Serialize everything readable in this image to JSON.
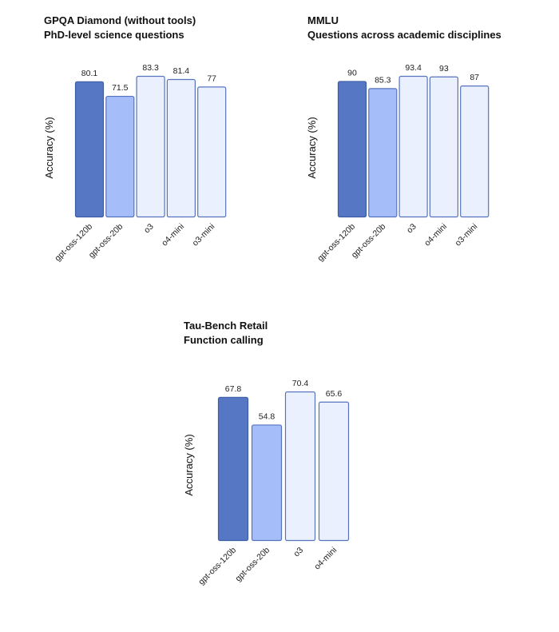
{
  "chart_data": [
    {
      "type": "bar",
      "title": "GPQA Diamond (without tools)",
      "subtitle": "PhD-level science questions",
      "xlabel": "",
      "ylabel": "Accuracy (%)",
      "categories": [
        "gpt-oss-120b",
        "gpt-oss-20b",
        "o3",
        "o4-mini",
        "o3-mini"
      ],
      "values": [
        80.1,
        71.5,
        83.3,
        81.4,
        77
      ],
      "value_labels": [
        "80.1",
        "71.5",
        "83.3",
        "81.4",
        "77"
      ],
      "ylim": [
        0,
        83.3
      ],
      "grid": false
    },
    {
      "type": "bar",
      "title": "MMLU",
      "subtitle": "Questions across academic disciplines",
      "xlabel": "",
      "ylabel": "Accuracy (%)",
      "categories": [
        "gpt-oss-120b",
        "gpt-oss-20b",
        "o3",
        "o4-mini",
        "o3-mini"
      ],
      "values": [
        90,
        85.3,
        93.4,
        93,
        87
      ],
      "value_labels": [
        "90",
        "85.3",
        "93.4",
        "93",
        "87"
      ],
      "ylim": [
        0,
        93.4
      ],
      "grid": false
    },
    {
      "type": "bar",
      "title": "Tau-Bench Retail",
      "subtitle": "Function calling",
      "xlabel": "",
      "ylabel": "Accuracy (%)",
      "categories": [
        "gpt-oss-120b",
        "gpt-oss-20b",
        "o3",
        "o4-mini"
      ],
      "values": [
        67.8,
        54.8,
        70.4,
        65.6
      ],
      "value_labels": [
        "67.8",
        "54.8",
        "70.4",
        "65.6"
      ],
      "ylim": [
        0,
        70.4
      ],
      "grid": false
    }
  ],
  "colors": {
    "gpt-oss-120b": {
      "fill": "#5577c4",
      "stroke": "#3d5ea6"
    },
    "gpt-oss-20b": {
      "fill": "#a5bef9",
      "stroke": "#5673bd"
    },
    "other": {
      "fill": "#eaf0fe",
      "stroke": "#5673bd"
    }
  }
}
